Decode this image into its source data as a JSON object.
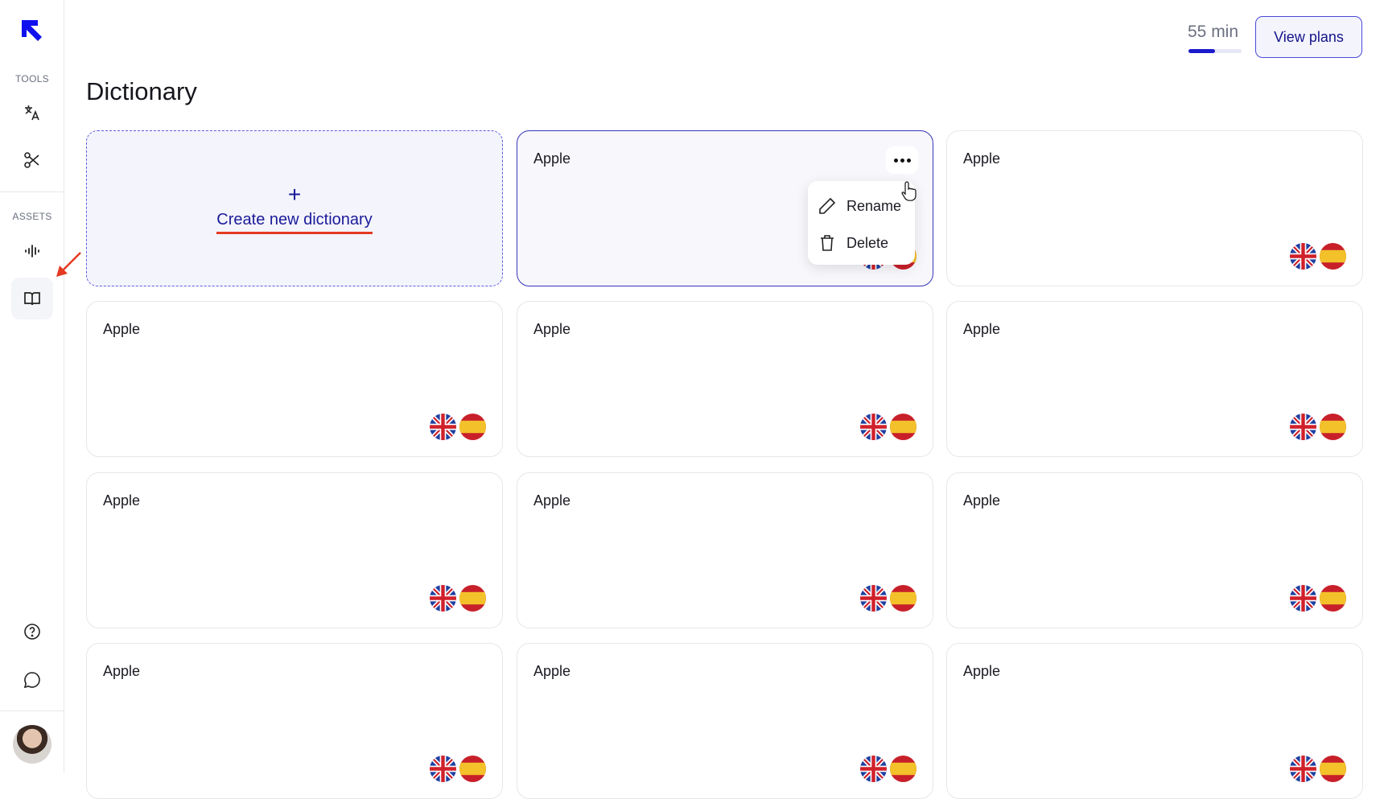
{
  "sidebar": {
    "tools_label": "TOOLS",
    "assets_label": "ASSETS"
  },
  "header": {
    "minutes": "55 min",
    "minutes_progress": 0.5,
    "view_plans": "View plans"
  },
  "page": {
    "title": "Dictionary",
    "create_label": "Create new dictionary",
    "create_icon": "+"
  },
  "cards": [
    {
      "name": "Apple"
    },
    {
      "name": "Apple"
    },
    {
      "name": "Apple"
    },
    {
      "name": "Apple"
    },
    {
      "name": "Apple"
    },
    {
      "name": "Apple"
    },
    {
      "name": "Apple"
    },
    {
      "name": "Apple"
    },
    {
      "name": "Apple"
    },
    {
      "name": "Apple"
    },
    {
      "name": "Apple"
    }
  ],
  "menu": {
    "rename": "Rename",
    "delete": "Delete"
  },
  "colors": {
    "brand": "#1a1acc",
    "accent_border": "#3434b8",
    "annotation": "#e33a22"
  }
}
